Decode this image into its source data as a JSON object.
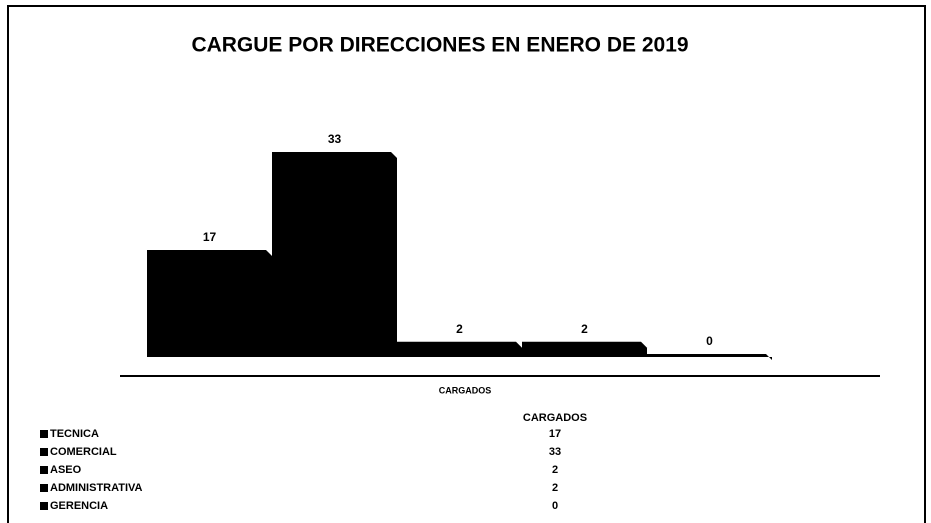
{
  "chart_data": {
    "type": "bar",
    "title": "CARGUE POR DIRECCIONES EN ENERO DE  2019",
    "x_label": "CARGADOS",
    "table_header": "CARGADOS",
    "categories": [
      "TECNICA",
      "COMERCIAL",
      "ASEO",
      "ADMINISTRATIVA",
      "GERENCIA"
    ],
    "values": [
      17,
      33,
      2,
      2,
      0
    ],
    "color": "#000000",
    "ylim": [
      0,
      33
    ]
  }
}
